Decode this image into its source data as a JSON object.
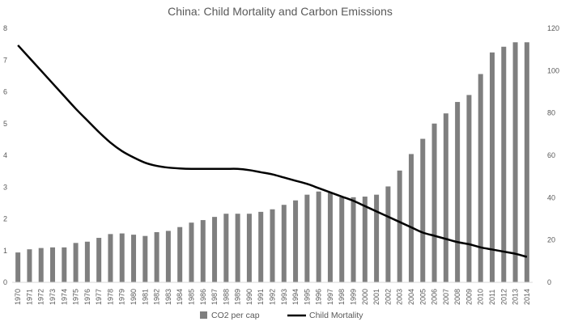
{
  "chart_data": {
    "type": "bar",
    "title": "China: Child Mortality and Carbon Emissions",
    "categories": [
      "1970",
      "1971",
      "1972",
      "1973",
      "1974",
      "1975",
      "1976",
      "1977",
      "1978",
      "1979",
      "1980",
      "1981",
      "1982",
      "1983",
      "1984",
      "1985",
      "1986",
      "1987",
      "1988",
      "1989",
      "1990",
      "1991",
      "1992",
      "1993",
      "1994",
      "1995",
      "1996",
      "1997",
      "1998",
      "1999",
      "2000",
      "2001",
      "2002",
      "2003",
      "2004",
      "2005",
      "2006",
      "2007",
      "2008",
      "2009",
      "2010",
      "2011",
      "2012",
      "2013",
      "2014"
    ],
    "y_left": {
      "min": 0,
      "max": 8,
      "ticks": [
        "0",
        "1",
        "2",
        "3",
        "4",
        "5",
        "6",
        "7",
        "8"
      ]
    },
    "y_right": {
      "min": 0,
      "max": 120,
      "ticks": [
        "0",
        "20",
        "40",
        "60",
        "80",
        "100",
        "120"
      ]
    },
    "series": [
      {
        "name": "CO2 per cap",
        "type": "bar",
        "axis": "left",
        "color": "#7f7f7f",
        "values": [
          0.94,
          1.04,
          1.08,
          1.1,
          1.1,
          1.24,
          1.28,
          1.4,
          1.52,
          1.54,
          1.5,
          1.46,
          1.58,
          1.62,
          1.74,
          1.88,
          1.96,
          2.06,
          2.16,
          2.16,
          2.16,
          2.22,
          2.3,
          2.44,
          2.58,
          2.76,
          2.86,
          2.82,
          2.68,
          2.68,
          2.7,
          2.76,
          3.02,
          3.52,
          4.04,
          4.52,
          5.0,
          5.32,
          5.68,
          5.9,
          6.56,
          7.24,
          7.42,
          7.56,
          7.56
        ]
      },
      {
        "name": "Child Mortality",
        "type": "line",
        "axis": "right",
        "color": "#000000",
        "values": [
          112,
          106,
          100,
          94,
          88,
          82,
          76.5,
          71,
          66,
          62,
          59,
          56.5,
          55,
          54.2,
          53.8,
          53.6,
          53.6,
          53.6,
          53.6,
          53.6,
          53,
          52,
          51,
          49.5,
          48,
          46.5,
          44.5,
          42.5,
          40.5,
          38.5,
          36,
          33.5,
          31,
          28.5,
          26,
          23.5,
          22,
          20.5,
          19,
          18,
          16.5,
          15.5,
          14.5,
          13.5,
          12
        ]
      }
    ],
    "legend": {
      "position": "bottom",
      "items": [
        "CO2 per cap",
        "Child Mortality"
      ]
    },
    "grid": false
  }
}
